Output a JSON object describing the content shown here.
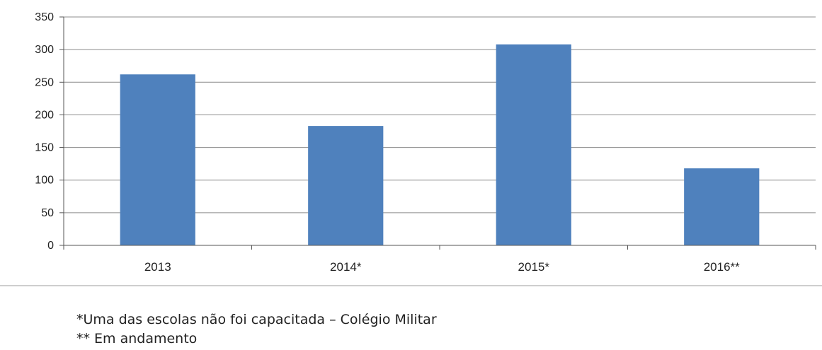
{
  "chart_data": {
    "type": "bar",
    "categories": [
      "2013",
      "2014*",
      "2015*",
      "2016**"
    ],
    "values": [
      262,
      183,
      308,
      118
    ],
    "title": "",
    "xlabel": "",
    "ylabel": "",
    "ylim": [
      0,
      350
    ],
    "yticks": [
      0,
      50,
      100,
      150,
      200,
      250,
      300,
      350
    ],
    "grid": true,
    "legend": "none",
    "bar_color": "#4f81bd",
    "grid_color": "#8c8c8c"
  },
  "footnotes": {
    "note1": "*Uma das escolas não foi capacitada – Colégio Militar",
    "note2": "** Em andamento"
  }
}
